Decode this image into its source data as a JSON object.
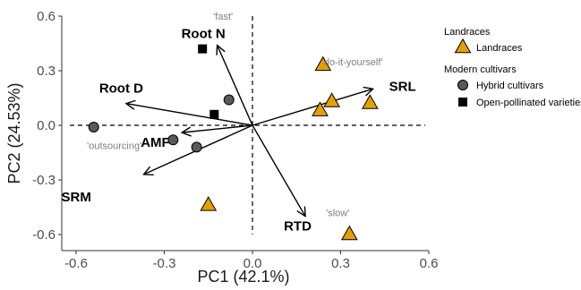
{
  "chart_data": {
    "type": "scatter",
    "title": "",
    "xlabel": "PC1 (42.1%)",
    "ylabel": "PC2 (24.53%)",
    "xlim": [
      -0.6,
      0.6
    ],
    "ylim": [
      -0.6,
      0.6
    ],
    "xticks": [
      "-0.6",
      "-0.3",
      "0.0",
      "0.3",
      "0.6"
    ],
    "yticks": [
      "0.6",
      "0.3",
      "0.0",
      "-0.3",
      "-0.6"
    ],
    "grid": false,
    "legend_position": "right",
    "colors": {
      "landraces": "#E69F00",
      "hybrid": "#595959",
      "open_pollinated": "#000000",
      "strategy_text": "#7f7f7f"
    },
    "reference_lines": [
      {
        "axis": "x",
        "value": 0,
        "style": "dashed"
      },
      {
        "axis": "y",
        "value": 0,
        "style": "dashed"
      }
    ],
    "series": [
      {
        "name": "Landraces",
        "group": "Landraces",
        "marker": "triangle",
        "points": [
          {
            "x": 0.24,
            "y": 0.33
          },
          {
            "x": 0.27,
            "y": 0.13
          },
          {
            "x": 0.23,
            "y": 0.08
          },
          {
            "x": 0.4,
            "y": 0.12
          },
          {
            "x": -0.15,
            "y": -0.44
          },
          {
            "x": 0.33,
            "y": -0.6
          }
        ]
      },
      {
        "name": "Hybrid cultivars",
        "group": "Modern cultivars",
        "marker": "circle",
        "points": [
          {
            "x": -0.54,
            "y": -0.01
          },
          {
            "x": -0.27,
            "y": -0.08
          },
          {
            "x": -0.19,
            "y": -0.12
          },
          {
            "x": -0.08,
            "y": 0.14
          }
        ]
      },
      {
        "name": "Open-pollinated varieties",
        "group": "Modern cultivars",
        "marker": "square",
        "points": [
          {
            "x": -0.17,
            "y": 0.42
          },
          {
            "x": -0.13,
            "y": 0.06
          }
        ]
      }
    ],
    "loadings": [
      {
        "name": "Root N",
        "x": -0.12,
        "y": 0.44
      },
      {
        "name": "Root D",
        "x": -0.43,
        "y": 0.12
      },
      {
        "name": "AMF",
        "x": -0.24,
        "y": -0.04
      },
      {
        "name": "SRM",
        "x": -0.37,
        "y": -0.27
      },
      {
        "name": "SRL",
        "x": 0.41,
        "y": 0.2
      },
      {
        "name": "RTD",
        "x": 0.18,
        "y": -0.5
      }
    ],
    "annotations": [
      {
        "text": "'fast'",
        "x": -0.1,
        "y": 0.58
      },
      {
        "text": "'do-it-yourself'",
        "x": 0.34,
        "y": 0.33
      },
      {
        "text": "'outsourcing'",
        "x": -0.47,
        "y": -0.13
      },
      {
        "text": "'slow'",
        "x": 0.29,
        "y": -0.5
      }
    ],
    "legend": {
      "groups": [
        {
          "title": "Landraces",
          "entries": [
            {
              "label": "Landraces",
              "marker": "triangle",
              "series": 0
            }
          ]
        },
        {
          "title": "Modern cultivars",
          "entries": [
            {
              "label": "Hybrid cultivars",
              "marker": "circle",
              "series": 1
            },
            {
              "label": "Open-pollinated varieties",
              "marker": "square",
              "series": 2
            }
          ]
        }
      ]
    }
  }
}
